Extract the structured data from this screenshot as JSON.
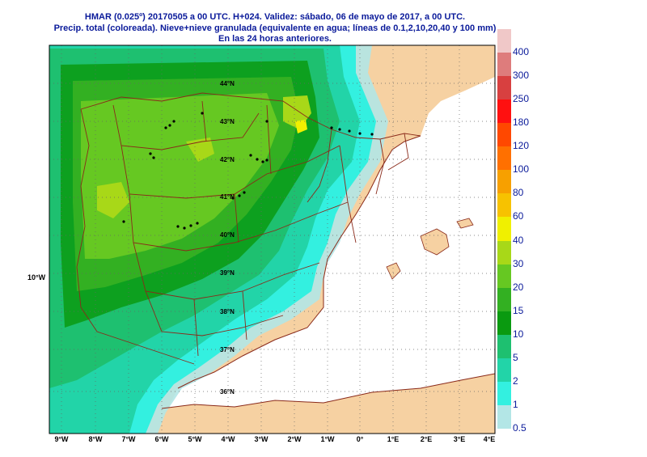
{
  "title": {
    "line1": "HMAR (0.025º) 20170505 a 00 UTC.  H+024. Validez: sábado, 06 de mayo de 2017,  a  00 UTC.",
    "line2": "Precip. total (coloreada). Nieve+nieve granulada (equivalente en agua; líneas de 0.1,2,10,20,40 y 100 mm)",
    "line3": "En las 24 horas anteriores."
  },
  "lon_labels": [
    "9°W",
    "8°W",
    "7°W",
    "6°W",
    "5°W",
    "4°W",
    "3°W",
    "2°W",
    "1°W",
    "0°",
    "1°E",
    "2°E",
    "3°E",
    "4°E"
  ],
  "lat_labels": [
    "44°N",
    "43°N",
    "42°N",
    "41°N",
    "40°N",
    "39°N",
    "38°N",
    "37°N",
    "36°N"
  ],
  "side_label": "10°W",
  "legend": {
    "levels": [
      "0.5",
      "1",
      "2",
      "5",
      "10",
      "15",
      "20",
      "30",
      "40",
      "60",
      "80",
      "100",
      "120",
      "180",
      "250",
      "300",
      "400"
    ],
    "colors": [
      "#b3e6e6",
      "#33f0e0",
      "#22d4a8",
      "#1ec070",
      "#0a9a10",
      "#33b022",
      "#66c822",
      "#a8d818",
      "#f0f000",
      "#f7c200",
      "#f7a000",
      "#ff7000",
      "#ff4800",
      "#ff1010",
      "#d84040",
      "#de7c7c",
      "#f0c8c8"
    ]
  },
  "colors": {
    "land": "#f6d1a2",
    "sea": "#ffffff",
    "border": "#8a2a1a",
    "title": "#0a1a9a"
  }
}
